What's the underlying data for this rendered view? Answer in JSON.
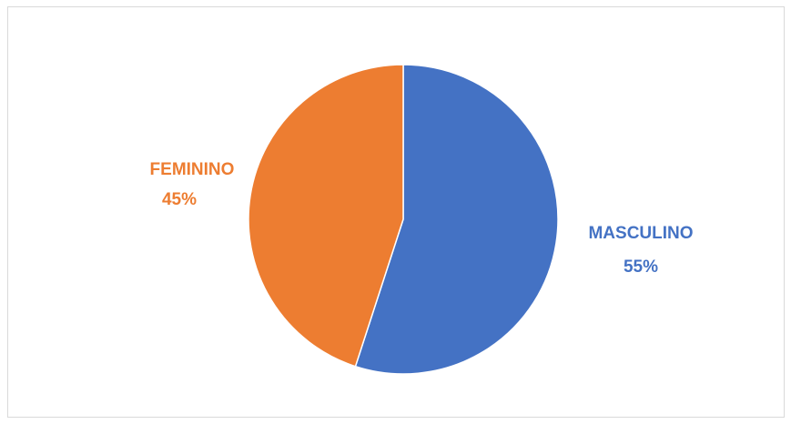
{
  "chart_data": {
    "type": "pie",
    "categories": [
      "MASCULINO",
      "FEMININO"
    ],
    "values": [
      55,
      45
    ],
    "colors": [
      "#4472c4",
      "#ed7d31"
    ],
    "labels": [
      {
        "category": "MASCULINO",
        "percent": "55%"
      },
      {
        "category": "FEMININO",
        "percent": "45%"
      }
    ],
    "start_angle_deg": 0,
    "direction": "clockwise",
    "legend": "none"
  }
}
